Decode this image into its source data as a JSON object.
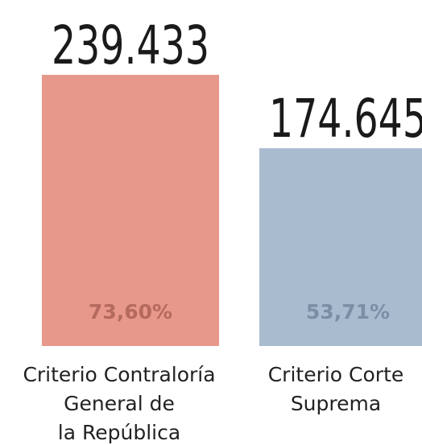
{
  "chart_data": {
    "type": "bar",
    "categories": [
      [
        "Criterio Contraloría",
        "General de",
        "la República"
      ],
      [
        "Criterio Corte",
        "Suprema"
      ]
    ],
    "values": [
      239433,
      174645
    ],
    "value_labels": [
      "239.433",
      "174.645"
    ],
    "percent_labels": [
      "73,60%",
      "53,71%"
    ],
    "colors": [
      "#e8988a",
      "#a9bccf"
    ],
    "percent_label_colors": [
      "#b46a5e",
      "#7a8fa3"
    ],
    "ylim": [
      0,
      239433
    ],
    "title": "",
    "xlabel": "",
    "ylabel": ""
  }
}
